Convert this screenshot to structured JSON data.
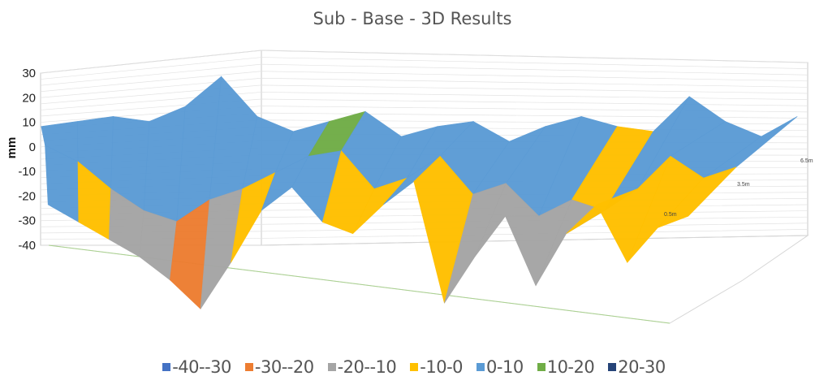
{
  "chart_data": {
    "type": "surface-3d",
    "title": "Sub - Base - 3D Results",
    "ylabel": "mm",
    "zlim": [
      -40,
      30
    ],
    "z_ticks": [
      "30",
      "20",
      "10",
      "0",
      "-10",
      "-20",
      "-30",
      "-40"
    ],
    "depth_labels": [
      "0.5m",
      "3.5m",
      "6.5m"
    ],
    "grid": true,
    "legend_position": "bottom",
    "bands": [
      {
        "name": "-40--30",
        "range": [
          -40,
          -30
        ],
        "color": "#4472C4"
      },
      {
        "name": "-30--20",
        "range": [
          -30,
          -20
        ],
        "color": "#ED7D31"
      },
      {
        "name": "-20--10",
        "range": [
          -20,
          -10
        ],
        "color": "#A5A5A5"
      },
      {
        "name": "-10-0",
        "range": [
          -10,
          0
        ],
        "color": "#FFC000"
      },
      {
        "name": "0-10",
        "range": [
          0,
          10
        ],
        "color": "#5B9BD5"
      },
      {
        "name": "10-20",
        "range": [
          10,
          20
        ],
        "color": "#70AD47"
      },
      {
        "name": "20-30",
        "range": [
          20,
          30
        ],
        "color": "#264478"
      }
    ],
    "series": [
      {
        "name": "0.5m",
        "values": [
          -2,
          -8,
          -14,
          -20,
          -28,
          -38,
          -22,
          -4,
          4,
          -8,
          -12,
          -2,
          6,
          -36,
          -20,
          -6,
          -30,
          -12,
          -2,
          -22,
          -10,
          -6
        ]
      },
      {
        "name": "3.5m",
        "values": [
          12,
          6,
          -4,
          -12,
          -16,
          -8,
          -4,
          2,
          8,
          10,
          -4,
          0,
          8,
          -6,
          -2,
          -14,
          -8,
          -12,
          -4,
          8,
          0,
          4
        ]
      },
      {
        "name": "6.5m",
        "values": [
          10,
          12,
          14,
          12,
          18,
          30,
          14,
          8,
          12,
          16,
          6,
          10,
          12,
          4,
          10,
          14,
          10,
          8,
          22,
          12,
          6,
          14
        ]
      }
    ]
  }
}
